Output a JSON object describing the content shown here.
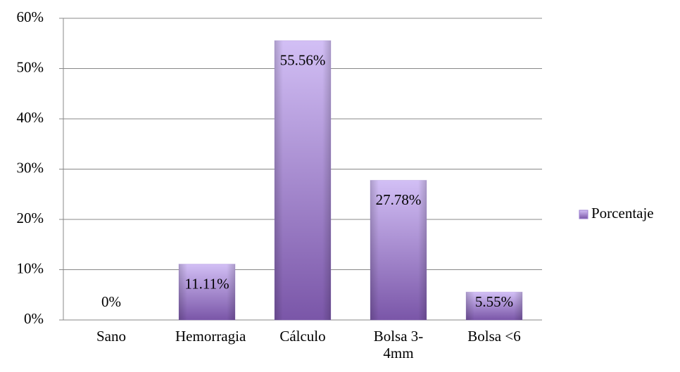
{
  "chart_data": {
    "type": "bar",
    "categories": [
      "Sano",
      "Hemorragia",
      "Cálculo",
      "Bolsa 3-4mm",
      "Bolsa <6"
    ],
    "series": [
      {
        "name": "Porcentaje",
        "color": "#9b7fd0",
        "values": [
          0,
          11.11,
          55.56,
          27.78,
          5.55
        ],
        "value_labels": [
          "0%",
          "11.11%",
          "55.56%",
          "27.78%",
          "5.55%"
        ]
      }
    ],
    "ylim": [
      0,
      60
    ],
    "yticks": [
      {
        "value": 0,
        "label": "0%"
      },
      {
        "value": 10,
        "label": "10%"
      },
      {
        "value": 20,
        "label": "20%"
      },
      {
        "value": 30,
        "label": "30%"
      },
      {
        "value": 40,
        "label": "40%"
      },
      {
        "value": 50,
        "label": "50%"
      },
      {
        "value": 60,
        "label": "60%"
      }
    ],
    "grid": true,
    "legend": "right"
  }
}
